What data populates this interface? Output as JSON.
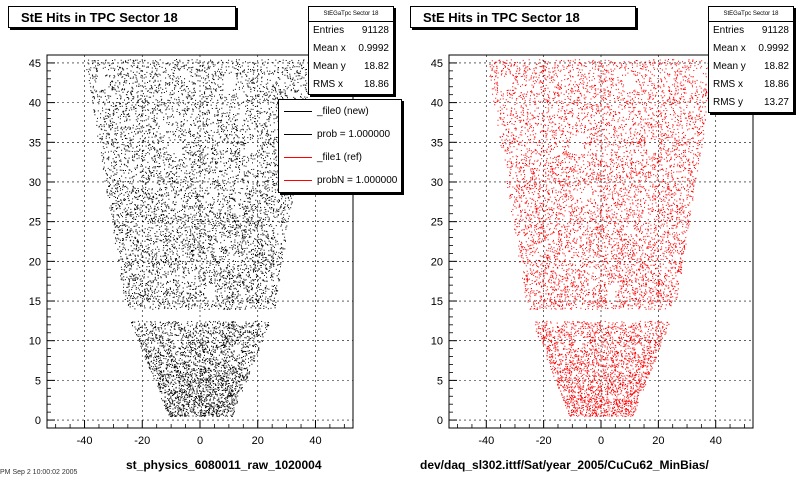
{
  "chart_data": [
    {
      "type": "scatter",
      "title": "StE Hits in TPC Sector 18",
      "xlabel": "st_physics_6080011_raw_1020004",
      "ylabel": "",
      "xlim": [
        -53,
        53
      ],
      "ylim": [
        -1,
        46
      ],
      "x_ticks": [
        -40,
        -20,
        0,
        20,
        40
      ],
      "y_ticks": [
        0,
        5,
        10,
        15,
        20,
        25,
        30,
        35,
        40,
        45
      ],
      "grid": true,
      "marker_color": "#000000",
      "stats": {
        "title": "StEGaTpc Sector 18",
        "rows": [
          {
            "label": "Entries",
            "value": "91128"
          },
          {
            "label": "Mean x",
            "value": "0.9992"
          },
          {
            "label": "Mean y",
            "value": "18.82"
          },
          {
            "label": "RMS x",
            "value": "18.86"
          }
        ]
      },
      "legend": {
        "position": "top-right",
        "entries": [
          {
            "text": "_file0 (new)",
            "color": "#000000"
          },
          {
            "text": "prob = 1.000000",
            "color": "#000000"
          },
          {
            "text": "_file1 (ref)",
            "color": "#ff0000"
          },
          {
            "text": "probN = 1.000000",
            "color": "#ff0000"
          }
        ]
      },
      "footer_left": "PM Sep  2 10:00:02 2005"
    },
    {
      "type": "scatter",
      "title": "StE Hits in TPC Sector 18",
      "xlabel": "dev/daq_sl302.ittf/Sat/year_2005/CuCu62_MinBias/",
      "ylabel": "",
      "xlim": [
        -53,
        53
      ],
      "ylim": [
        -1,
        46
      ],
      "x_ticks": [
        -40,
        -20,
        0,
        20,
        40
      ],
      "y_ticks": [
        0,
        5,
        10,
        15,
        20,
        25,
        30,
        35,
        40,
        45
      ],
      "grid": true,
      "marker_color": "#ff0000",
      "stats": {
        "title": "StEGaTpc Sector 18",
        "rows": [
          {
            "label": "Entries",
            "value": "91128"
          },
          {
            "label": "Mean x",
            "value": "0.9992"
          },
          {
            "label": "Mean y",
            "value": "18.82"
          },
          {
            "label": "RMS x",
            "value": "18.86"
          },
          {
            "label": "RMS y",
            "value": "13.27"
          }
        ]
      }
    }
  ]
}
